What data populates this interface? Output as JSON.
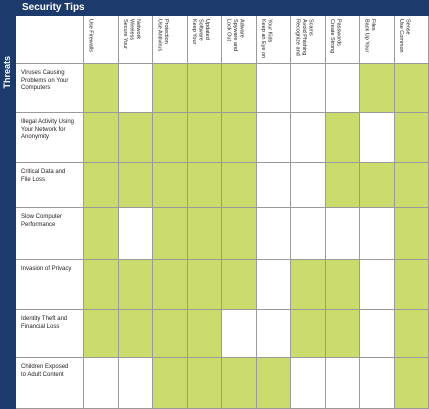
{
  "header": {
    "title": "Security Tips",
    "side_label": "Threats"
  },
  "table": {
    "columns": [
      "Use Firewalls",
      "Secure Your Wireless Network",
      "Use Antivirus Protection",
      "Keep Your Software Updated",
      "Lock Out Spyware and Adware",
      "Keep an Eye on Your Kids",
      "Recognize and Avoid Phishing Scams",
      "Create Strong Passwords",
      "Back Up Your Files",
      "Use Common Sense"
    ],
    "rows": [
      {
        "label": "Viruses Causing Problems on Your Computers",
        "cells": [
          true,
          false,
          true,
          true,
          true,
          false,
          false,
          false,
          true,
          true
        ]
      },
      {
        "label": "Illegal Activity Using Your Network for Anonymity",
        "cells": [
          true,
          true,
          true,
          true,
          true,
          false,
          false,
          true,
          false,
          true
        ]
      },
      {
        "label": "Critical Data and File Loss",
        "cells": [
          true,
          true,
          true,
          true,
          true,
          false,
          false,
          true,
          true,
          true
        ]
      },
      {
        "label": "Slow Computer Performance",
        "cells": [
          true,
          false,
          true,
          true,
          true,
          false,
          false,
          false,
          false,
          true
        ]
      },
      {
        "label": "Invasion of Privacy",
        "cells": [
          true,
          true,
          true,
          true,
          true,
          false,
          true,
          true,
          false,
          true
        ]
      },
      {
        "label": "Identity Theft and Financial Loss",
        "cells": [
          true,
          true,
          true,
          true,
          false,
          false,
          true,
          true,
          false,
          true
        ]
      },
      {
        "label": "Children Exposed to Adult Content",
        "cells": [
          false,
          false,
          true,
          true,
          true,
          true,
          false,
          false,
          false,
          true
        ]
      }
    ],
    "checked_color": "#cbdb6c"
  }
}
